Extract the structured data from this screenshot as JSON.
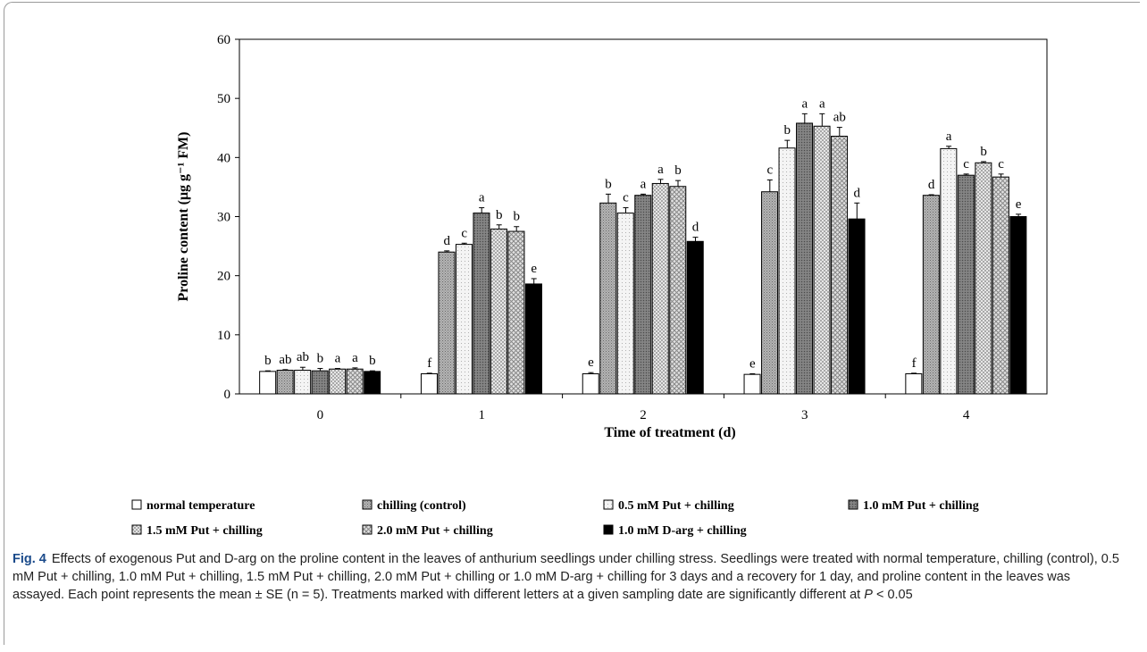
{
  "chart_data": {
    "type": "bar",
    "categories": [
      "0",
      "1",
      "2",
      "3",
      "4"
    ],
    "xlabel": "Time of treatment (d)",
    "ylabel": "Proline content (μg g⁻¹ FM)",
    "ylim": [
      0,
      60
    ],
    "yticks": [
      "0",
      "10",
      "20",
      "30",
      "40",
      "50",
      "60"
    ],
    "grid": false,
    "legend_position": "bottom",
    "series": [
      {
        "name": "normal temperature",
        "pattern": "white",
        "values": [
          3.8,
          3.4,
          3.4,
          3.3,
          3.4
        ],
        "errors": [
          0.1,
          0.1,
          0.2,
          0.1,
          0.1
        ],
        "letters": [
          "b",
          "f",
          "e",
          "e",
          "f"
        ]
      },
      {
        "name": "chilling (control)",
        "pattern": "dense-gray",
        "values": [
          4.0,
          24.0,
          32.3,
          34.2,
          33.6
        ],
        "errors": [
          0.1,
          0.2,
          1.5,
          2.0,
          0.1
        ],
        "letters": [
          "ab",
          "d",
          "b",
          "c",
          "d"
        ]
      },
      {
        "name": "0.5 mM Put + chilling",
        "pattern": "light-dots",
        "values": [
          4.0,
          25.3,
          30.6,
          41.6,
          41.5
        ],
        "errors": [
          0.5,
          0.2,
          0.9,
          1.3,
          0.4
        ],
        "letters": [
          "ab",
          "c",
          "c",
          "b",
          "a"
        ]
      },
      {
        "name": "1.0 mM Put + chilling",
        "pattern": "dark-gray",
        "values": [
          3.9,
          30.6,
          33.6,
          45.8,
          37.0
        ],
        "errors": [
          0.4,
          0.9,
          0.2,
          1.6,
          0.2
        ],
        "letters": [
          "b",
          "a",
          "a",
          "a",
          "c"
        ]
      },
      {
        "name": "1.5 mM Put + chilling",
        "pattern": "check",
        "values": [
          4.2,
          27.9,
          35.6,
          45.3,
          39.1
        ],
        "errors": [
          0.1,
          0.7,
          0.7,
          2.1,
          0.2
        ],
        "letters": [
          "a",
          "b",
          "a",
          "a",
          "b"
        ]
      },
      {
        "name": "2.0 mM Put + chilling",
        "pattern": "cross",
        "values": [
          4.2,
          27.5,
          35.1,
          43.6,
          36.7
        ],
        "errors": [
          0.2,
          0.8,
          1.0,
          1.5,
          0.5
        ],
        "letters": [
          "a",
          "b",
          "b",
          "ab",
          "c"
        ]
      },
      {
        "name": "1.0 mM D-arg + chilling",
        "pattern": "black",
        "values": [
          3.8,
          18.6,
          25.8,
          29.6,
          30.0
        ],
        "errors": [
          0.1,
          0.9,
          0.7,
          2.7,
          0.4
        ],
        "letters": [
          "b",
          "e",
          "d",
          "d",
          "e"
        ]
      }
    ]
  },
  "caption": {
    "label": "Fig. 4",
    "text_before_p": "Effects of exogenous Put and D-arg on the proline content in the leaves of anthurium seedlings under chilling stress. Seedlings were treated with normal temperature, chilling (control), 0.5 mM Put + chilling, 1.0 mM Put + chilling, 1.5 mM Put + chilling, 2.0 mM Put + chilling or 1.0 mM D-arg + chilling for 3 days and a recovery for 1 day, and proline content in the leaves was assayed. Each point represents the mean ± SE (n = 5). Treatments marked with different letters at a given sampling date are significantly different at ",
    "p_var": "P",
    "text_after_p": " < 0.05"
  }
}
